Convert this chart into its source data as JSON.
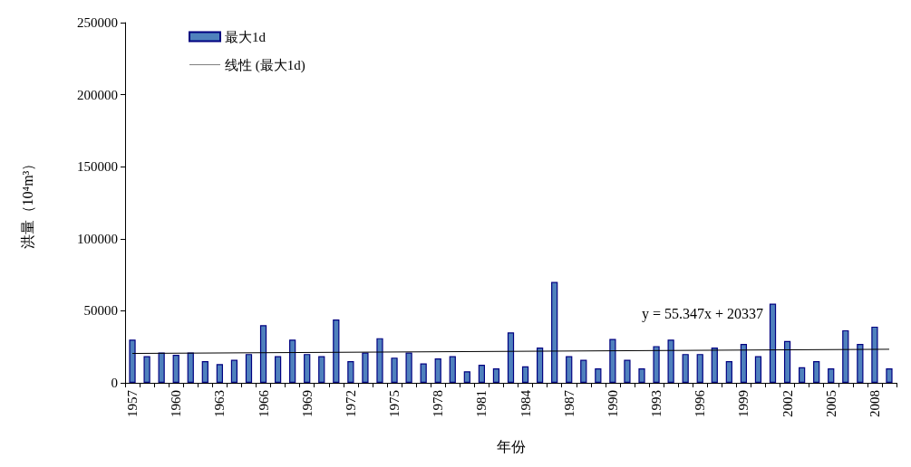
{
  "chart_data": {
    "type": "bar",
    "xlabel": "年份",
    "ylabel": "洪量（10⁴m³）",
    "categories": [
      "1957",
      null,
      null,
      "1960",
      null,
      null,
      "1963",
      null,
      null,
      "1966",
      null,
      null,
      "1969",
      null,
      null,
      "1972",
      null,
      null,
      "1975",
      null,
      null,
      "1978",
      null,
      null,
      "1981",
      null,
      null,
      "1984",
      null,
      null,
      "1987",
      null,
      null,
      "1990",
      null,
      null,
      "1993",
      null,
      null,
      "1996",
      null,
      null,
      "1999",
      null,
      null,
      "2002",
      null,
      null,
      "2005",
      null,
      null,
      "2008",
      null
    ],
    "series": [
      {
        "name": "最大1d",
        "color": "#4f81bd",
        "values": [
          30000,
          18500,
          21000,
          19500,
          21000,
          15000,
          13000,
          16000,
          20000,
          40000,
          18500,
          30000,
          20000,
          18500,
          44000,
          15000,
          21000,
          31000,
          17500,
          21000,
          13500,
          17000,
          18500,
          8000,
          12500,
          10000,
          35000,
          11500,
          24500,
          70000,
          18500,
          16000,
          10000,
          30500,
          16000,
          10000,
          25500,
          30000,
          20000,
          20000,
          24500,
          15000,
          27000,
          18500,
          55000,
          29000,
          10800,
          15000,
          10000,
          36500,
          27000,
          39000,
          10000
        ]
      },
      {
        "name": "线性 (最大1d)",
        "type": "line",
        "color": "#000000",
        "values": [
          20400,
          null,
          null,
          null,
          null,
          null,
          null,
          null,
          null,
          null,
          null,
          null,
          null,
          null,
          null,
          null,
          null,
          null,
          null,
          null,
          null,
          null,
          null,
          null,
          null,
          null,
          null,
          null,
          null,
          null,
          null,
          null,
          null,
          null,
          null,
          null,
          null,
          null,
          null,
          null,
          null,
          null,
          null,
          null,
          null,
          null,
          null,
          null,
          null,
          null,
          null,
          null,
          23300
        ]
      }
    ],
    "ylim": [
      0,
      250000
    ],
    "yticks": [
      0,
      50000,
      100000,
      150000,
      200000,
      250000
    ],
    "grid": false,
    "legend": "top left",
    "marker": "none",
    "line_style": "solid",
    "annotations": [
      "y = 55.347x + 20337"
    ]
  }
}
